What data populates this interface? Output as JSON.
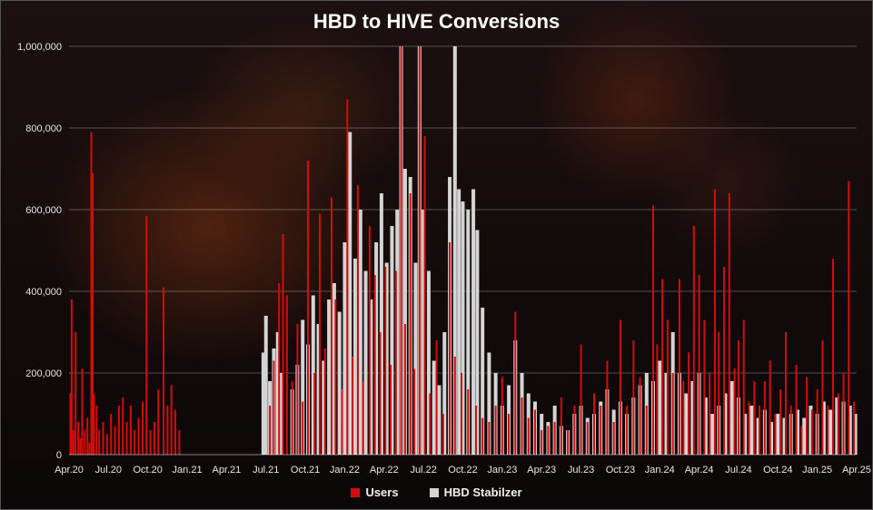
{
  "chart_data": {
    "type": "bar",
    "title": "HBD to HIVE Conversions",
    "xlabel": "",
    "ylabel": "",
    "ylim": [
      0,
      1000000
    ],
    "y_ticks": [
      "0",
      "200,000",
      "400,000",
      "600,000",
      "800,000",
      "1,000,000"
    ],
    "y_tick_values": [
      0,
      200000,
      400000,
      600000,
      800000,
      1000000
    ],
    "x_tick_labels": [
      "Apr.20",
      "Jul.20",
      "Oct.20",
      "Jan.21",
      "Apr.21",
      "Jul.21",
      "Oct.21",
      "Jan.22",
      "Apr.22",
      "Jul.22",
      "Oct.22",
      "Jan.23",
      "Apr.23",
      "Jul.23",
      "Oct.23",
      "Jan.24",
      "Apr.24",
      "Jul.24",
      "Oct.24",
      "Jan.25",
      "Apr.25"
    ],
    "grid": true,
    "legend_position": "bottom",
    "colors": {
      "users": "#d40c0c",
      "hbd_stabilizer": "#d4d4d4"
    },
    "x_unit": "month index (0 = Apr.20)",
    "series": [
      {
        "name": "Users",
        "points": [
          [
            0.1,
            150000
          ],
          [
            0.2,
            380000
          ],
          [
            0.35,
            60000
          ],
          [
            0.5,
            300000
          ],
          [
            0.7,
            80000
          ],
          [
            0.85,
            40000
          ],
          [
            1.0,
            210000
          ],
          [
            1.2,
            60000
          ],
          [
            1.4,
            90000
          ],
          [
            1.55,
            30000
          ],
          [
            1.7,
            790000
          ],
          [
            1.8,
            690000
          ],
          [
            1.9,
            150000
          ],
          [
            2.1,
            120000
          ],
          [
            2.3,
            60000
          ],
          [
            2.6,
            80000
          ],
          [
            2.9,
            50000
          ],
          [
            3.2,
            100000
          ],
          [
            3.5,
            70000
          ],
          [
            3.8,
            120000
          ],
          [
            4.1,
            140000
          ],
          [
            4.4,
            80000
          ],
          [
            4.7,
            120000
          ],
          [
            5.0,
            60000
          ],
          [
            5.3,
            90000
          ],
          [
            5.6,
            130000
          ],
          [
            5.9,
            585000
          ],
          [
            6.2,
            60000
          ],
          [
            6.5,
            80000
          ],
          [
            6.8,
            160000
          ],
          [
            7.2,
            410000
          ],
          [
            7.5,
            120000
          ],
          [
            7.8,
            170000
          ],
          [
            8.1,
            110000
          ],
          [
            8.4,
            60000
          ],
          [
            15.3,
            120000
          ],
          [
            15.6,
            230000
          ],
          [
            16.0,
            420000
          ],
          [
            16.3,
            540000
          ],
          [
            16.6,
            390000
          ],
          [
            17.0,
            180000
          ],
          [
            17.4,
            320000
          ],
          [
            17.8,
            130000
          ],
          [
            18.2,
            720000
          ],
          [
            18.7,
            200000
          ],
          [
            19.1,
            590000
          ],
          [
            19.5,
            260000
          ],
          [
            20.0,
            630000
          ],
          [
            20.3,
            380000
          ],
          [
            20.8,
            160000
          ],
          [
            21.2,
            870000
          ],
          [
            21.6,
            240000
          ],
          [
            22.0,
            660000
          ],
          [
            22.4,
            180000
          ],
          [
            22.9,
            560000
          ],
          [
            23.3,
            440000
          ],
          [
            23.7,
            300000
          ],
          [
            24.1,
            460000
          ],
          [
            24.5,
            220000
          ],
          [
            24.9,
            450000
          ],
          [
            25.3,
            1000000
          ],
          [
            25.6,
            320000
          ],
          [
            26.0,
            640000
          ],
          [
            26.3,
            210000
          ],
          [
            26.7,
            1000000
          ],
          [
            27.1,
            780000
          ],
          [
            27.5,
            150000
          ],
          [
            28.0,
            280000
          ],
          [
            28.5,
            100000
          ],
          [
            29.0,
            520000
          ],
          [
            29.4,
            240000
          ],
          [
            29.9,
            200000
          ],
          [
            30.4,
            160000
          ],
          [
            31.0,
            120000
          ],
          [
            31.5,
            90000
          ],
          [
            32.0,
            80000
          ],
          [
            32.5,
            120000
          ],
          [
            33.0,
            190000
          ],
          [
            33.5,
            100000
          ],
          [
            34.0,
            350000
          ],
          [
            34.5,
            140000
          ],
          [
            35.0,
            90000
          ],
          [
            35.5,
            110000
          ],
          [
            36.0,
            60000
          ],
          [
            36.5,
            70000
          ],
          [
            37.0,
            80000
          ],
          [
            37.5,
            140000
          ],
          [
            38.0,
            60000
          ],
          [
            38.5,
            120000
          ],
          [
            39.0,
            270000
          ],
          [
            39.5,
            80000
          ],
          [
            40.0,
            150000
          ],
          [
            40.5,
            120000
          ],
          [
            41.0,
            230000
          ],
          [
            41.5,
            80000
          ],
          [
            42.0,
            330000
          ],
          [
            42.5,
            120000
          ],
          [
            43.0,
            280000
          ],
          [
            43.5,
            190000
          ],
          [
            44.0,
            120000
          ],
          [
            44.5,
            610000
          ],
          [
            44.8,
            270000
          ],
          [
            45.2,
            430000
          ],
          [
            45.6,
            330000
          ],
          [
            46.0,
            200000
          ],
          [
            46.5,
            430000
          ],
          [
            46.8,
            180000
          ],
          [
            47.2,
            250000
          ],
          [
            47.6,
            560000
          ],
          [
            48.0,
            440000
          ],
          [
            48.4,
            330000
          ],
          [
            48.8,
            200000
          ],
          [
            49.2,
            650000
          ],
          [
            49.5,
            300000
          ],
          [
            49.9,
            460000
          ],
          [
            50.3,
            640000
          ],
          [
            50.7,
            210000
          ],
          [
            51.0,
            280000
          ],
          [
            51.4,
            330000
          ],
          [
            51.8,
            130000
          ],
          [
            52.2,
            180000
          ],
          [
            52.6,
            120000
          ],
          [
            53.0,
            180000
          ],
          [
            53.4,
            230000
          ],
          [
            53.8,
            100000
          ],
          [
            54.2,
            160000
          ],
          [
            54.6,
            300000
          ],
          [
            55.0,
            120000
          ],
          [
            55.4,
            220000
          ],
          [
            55.8,
            70000
          ],
          [
            56.2,
            190000
          ],
          [
            56.6,
            110000
          ],
          [
            57.0,
            160000
          ],
          [
            57.4,
            280000
          ],
          [
            57.8,
            120000
          ],
          [
            58.2,
            480000
          ],
          [
            58.6,
            150000
          ],
          [
            59.0,
            200000
          ],
          [
            59.4,
            670000
          ],
          [
            59.8,
            130000
          ]
        ]
      },
      {
        "name": "HBD Stabilzer",
        "points": [
          [
            14.8,
            250000
          ],
          [
            15.0,
            340000
          ],
          [
            15.3,
            180000
          ],
          [
            15.6,
            260000
          ],
          [
            15.9,
            300000
          ],
          [
            16.2,
            200000
          ],
          [
            17.0,
            160000
          ],
          [
            17.4,
            220000
          ],
          [
            17.8,
            330000
          ],
          [
            18.2,
            270000
          ],
          [
            18.6,
            390000
          ],
          [
            19.0,
            320000
          ],
          [
            19.4,
            230000
          ],
          [
            19.8,
            380000
          ],
          [
            20.2,
            420000
          ],
          [
            20.6,
            350000
          ],
          [
            21.0,
            520000
          ],
          [
            21.4,
            790000
          ],
          [
            21.8,
            480000
          ],
          [
            22.2,
            600000
          ],
          [
            22.6,
            450000
          ],
          [
            23.0,
            380000
          ],
          [
            23.4,
            520000
          ],
          [
            23.8,
            640000
          ],
          [
            24.2,
            470000
          ],
          [
            24.6,
            560000
          ],
          [
            25.0,
            600000
          ],
          [
            25.3,
            1000000
          ],
          [
            25.6,
            700000
          ],
          [
            26.0,
            680000
          ],
          [
            26.4,
            470000
          ],
          [
            26.7,
            1000000
          ],
          [
            27.0,
            600000
          ],
          [
            27.4,
            450000
          ],
          [
            27.8,
            230000
          ],
          [
            28.2,
            170000
          ],
          [
            28.6,
            300000
          ],
          [
            29.0,
            680000
          ],
          [
            29.4,
            1000000
          ],
          [
            29.7,
            650000
          ],
          [
            30.0,
            620000
          ],
          [
            30.4,
            600000
          ],
          [
            30.8,
            650000
          ],
          [
            31.1,
            550000
          ],
          [
            31.5,
            360000
          ],
          [
            32.0,
            250000
          ],
          [
            32.5,
            200000
          ],
          [
            33.0,
            120000
          ],
          [
            33.5,
            170000
          ],
          [
            34.0,
            280000
          ],
          [
            34.5,
            200000
          ],
          [
            35.0,
            150000
          ],
          [
            35.5,
            130000
          ],
          [
            36.0,
            100000
          ],
          [
            36.5,
            80000
          ],
          [
            37.0,
            120000
          ],
          [
            37.5,
            70000
          ],
          [
            38.0,
            60000
          ],
          [
            38.5,
            100000
          ],
          [
            39.0,
            120000
          ],
          [
            39.5,
            90000
          ],
          [
            40.0,
            100000
          ],
          [
            40.5,
            130000
          ],
          [
            41.0,
            160000
          ],
          [
            41.5,
            110000
          ],
          [
            42.0,
            130000
          ],
          [
            42.5,
            100000
          ],
          [
            43.0,
            140000
          ],
          [
            43.5,
            170000
          ],
          [
            44.0,
            200000
          ],
          [
            44.5,
            180000
          ],
          [
            45.0,
            230000
          ],
          [
            45.5,
            200000
          ],
          [
            46.0,
            300000
          ],
          [
            46.5,
            200000
          ],
          [
            47.0,
            150000
          ],
          [
            47.5,
            180000
          ],
          [
            48.0,
            200000
          ],
          [
            48.5,
            140000
          ],
          [
            49.0,
            100000
          ],
          [
            49.5,
            120000
          ],
          [
            50.0,
            150000
          ],
          [
            50.5,
            180000
          ],
          [
            51.0,
            140000
          ],
          [
            51.5,
            100000
          ],
          [
            52.0,
            120000
          ],
          [
            52.5,
            90000
          ],
          [
            53.0,
            110000
          ],
          [
            53.5,
            80000
          ],
          [
            54.0,
            100000
          ],
          [
            54.5,
            90000
          ],
          [
            55.0,
            100000
          ],
          [
            55.5,
            110000
          ],
          [
            56.0,
            90000
          ],
          [
            56.5,
            120000
          ],
          [
            57.0,
            100000
          ],
          [
            57.5,
            130000
          ],
          [
            58.0,
            110000
          ],
          [
            58.5,
            140000
          ],
          [
            59.0,
            130000
          ],
          [
            59.5,
            120000
          ],
          [
            59.9,
            100000
          ]
        ]
      }
    ]
  }
}
